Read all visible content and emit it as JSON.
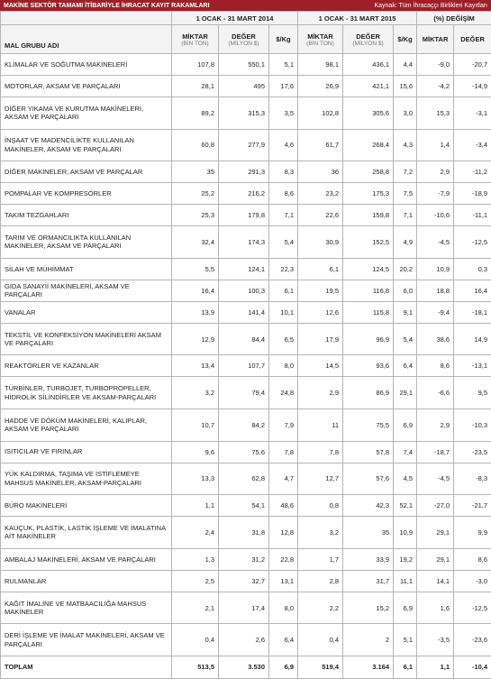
{
  "header": {
    "title": "MAKİNE SEKTÖR TAMAMI İTİBARİYLE İHRACAT KAYIT RAKAMLARI",
    "source": "Kaynak: Tüm İhracaççı Birlikleri Kayıtları"
  },
  "table": {
    "groups": [
      "1 OCAK - 31 MART 2014",
      "1 OCAK - 31 MART 2015",
      "(%) DEĞİŞİM"
    ],
    "columns": [
      {
        "label": "MAL GRUBU ADI"
      },
      {
        "label": "MİKTAR",
        "unit": "(BİN TON)"
      },
      {
        "label": "DEĞER",
        "unit": "(MİLYON $)"
      },
      {
        "label": "$/Kg"
      },
      {
        "label": "MİKTAR",
        "unit": "(BİN TON)"
      },
      {
        "label": "DEĞER",
        "unit": "(MİLYON $)"
      },
      {
        "label": "$/Kg"
      },
      {
        "label": "MİKTAR"
      },
      {
        "label": "DEĞER"
      }
    ],
    "rows": [
      [
        "KLİMALAR VE SOĞUTMA MAKİNELERİ",
        "107,8",
        "550,1",
        "5,1",
        "98,1",
        "436,1",
        "4,4",
        "-9,0",
        "-20,7"
      ],
      [
        "MOTORLAR, AKSAM VE PARÇALARI",
        "28,1",
        "495",
        "17,6",
        "26,9",
        "421,1",
        "15,6",
        "-4,2",
        "-14,9"
      ],
      [
        "DİĞER YIKAMA VE KURUTMA MAKİNELERİ, AKSAM VE PARÇALARI",
        "89,2",
        "315,3",
        "3,5",
        "102,8",
        "305,6",
        "3,0",
        "15,3",
        "-3,1"
      ],
      [
        "İNŞAAT VE MADENCİLİKTE KULLANILAN MAKİNELER, AKSAM VE PARÇALARI",
        "60,8",
        "277,9",
        "4,6",
        "61,7",
        "268,4",
        "4,3",
        "1,4",
        "-3,4"
      ],
      [
        "DİĞER MAKİNELER, AKSAM VE PARÇALAR",
        "35",
        "291,3",
        "8,3",
        "36",
        "258,8",
        "7,2",
        "2,9",
        "-11,2"
      ],
      [
        "POMPALAR VE KOMPRESÖRLER",
        "25,2",
        "216,2",
        "8,6",
        "23,2",
        "175,3",
        "7,5",
        "-7,9",
        "-18,9"
      ],
      [
        "TAKIM TEZGAHLARI",
        "25,3",
        "179,8",
        "7,1",
        "22,6",
        "159,8",
        "7,1",
        "-10,6",
        "-11,1"
      ],
      [
        "TARIM VE ORMANCILIKTA KULLANILAN MAKİNELER, AKSAM VE PARÇALARI",
        "32,4",
        "174,3",
        "5,4",
        "30,9",
        "152,5",
        "4,9",
        "-4,5",
        "-12,5"
      ],
      [
        "SİLAH VE MÜHİMMAT",
        "5,5",
        "124,1",
        "22,3",
        "6,1",
        "124,5",
        "20,2",
        "10,9",
        "0,3"
      ],
      [
        "GIDA SANAYİİ MAKİNELERİ, AKSAM VE PARÇALARI",
        "16,4",
        "100,3",
        "6,1",
        "19,5",
        "116,8",
        "6,0",
        "18,8",
        "16,4"
      ],
      [
        "VANALAR",
        "13,9",
        "141,4",
        "10,1",
        "12,6",
        "115,8",
        "9,1",
        "-9,4",
        "-18,1"
      ],
      [
        "TEKSTİL VE KONFEKSİYON MAKİNELERİ AKSAM VE PARÇALARI",
        "12,9",
        "84,4",
        "6,5",
        "17,9",
        "96,9",
        "5,4",
        "38,6",
        "14,9"
      ],
      [
        "REAKTÖRLER VE KAZANLAR",
        "13,4",
        "107,7",
        "8,0",
        "14,5",
        "93,6",
        "6,4",
        "8,6",
        "-13,1"
      ],
      [
        "TÜRBİNLER, TURBOJET, TURBOPROPELLER, HİDROLİK SİLİNDİRLER VE AKSAM-PARÇALARI",
        "3,2",
        "79,4",
        "24,8",
        "2,9",
        "86,9",
        "29,1",
        "-6,6",
        "9,5"
      ],
      [
        "HADDE VE DÖKÜM MAKİNELERİ, KALIPLAR, AKSAM VE PARÇALARI",
        "10,7",
        "84,2",
        "7,9",
        "11",
        "75,5",
        "6,9",
        "2,9",
        "-10,3"
      ],
      [
        "ISITICILAR VE FIRINLAR",
        "9,6",
        "75,6",
        "7,8",
        "7,8",
        "57,8",
        "7,4",
        "-18,7",
        "-23,5"
      ],
      [
        "YÜK KALDIRMA, TAŞIMA VE İSTİFLEMEYE MAHSUS MAKİNELER, AKSAM-PARÇALARI",
        "13,3",
        "62,8",
        "4,7",
        "12,7",
        "57,6",
        "4,5",
        "-4,5",
        "-8,3"
      ],
      [
        "BÜRO MAKİNELERİ",
        "1,1",
        "54,1",
        "48,6",
        "0,8",
        "42,3",
        "52,1",
        "-27,0",
        "-21,7"
      ],
      [
        "KAUÇUK, PLASTİK, LASTİK İŞLEME VE İMALATINA AİT MAKİNELER",
        "2,4",
        "31,8",
        "12,8",
        "3,2",
        "35",
        "10,9",
        "29,1",
        "9,9"
      ],
      [
        "AMBALAJ MAKİNELERİ, AKSAM VE PARÇALARI",
        "1,3",
        "31,2",
        "22,8",
        "1,7",
        "33,9",
        "19,2",
        "29,1",
        "8,6"
      ],
      [
        "RULMANLAR",
        "2,5",
        "32,7",
        "13,1",
        "2,8",
        "31,7",
        "11,1",
        "14,1",
        "-3,0"
      ],
      [
        "KAĞIT İMALİNE VE MATBAACILIĞA MAHSUS MAKİNELER",
        "2,1",
        "17,4",
        "8,0",
        "2,2",
        "15,2",
        "6,9",
        "1,6",
        "-12,5"
      ],
      [
        "DERİ İŞLEME VE İMALAT MAKİNELERİ, AKSAM VE PARÇALARI",
        "0,4",
        "2,6",
        "6,4",
        "0,4",
        "2",
        "5,1",
        "-3,5",
        "-23,6"
      ]
    ],
    "total": [
      "TOPLAM",
      "513,5",
      "3.530",
      "6,9",
      "519,4",
      "3.164",
      "6,1",
      "1,1",
      "-10,4"
    ]
  }
}
